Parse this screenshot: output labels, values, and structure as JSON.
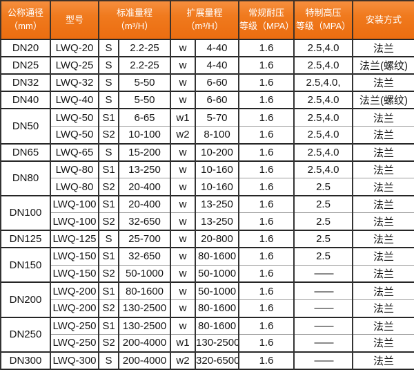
{
  "colors": {
    "header_bg": "#eb6d10",
    "header_text": "#ffffff",
    "grid_dark": "#262626",
    "grid_mid": "#333333",
    "grid_light": "#9a9a9a",
    "body_text": "#141414"
  },
  "chart_data": {
    "type": "table",
    "columns": [
      {
        "label": "公称通径（mm）",
        "lines": [
          "公称通径",
          "（mm）"
        ],
        "colspan": 1
      },
      {
        "label": "型号",
        "lines": [
          "型号"
        ],
        "colspan": 1
      },
      {
        "label": "标准量程（m³/H）",
        "lines": [
          "标准量程",
          "（m³/H）"
        ],
        "colspan": 2
      },
      {
        "label": "扩展量程（m³/H）",
        "lines": [
          "扩展量程",
          "（m³/H）"
        ],
        "colspan": 2
      },
      {
        "label": "常规耐压等级（MPA）",
        "lines": [
          "常规耐压",
          "等级（MPA）"
        ],
        "colspan": 1
      },
      {
        "label": "特制高压等级（MPA）",
        "lines": [
          "特制高压",
          "等级（MPA）"
        ],
        "colspan": 1
      },
      {
        "label": "安装方式",
        "lines": [
          "安装方式"
        ],
        "colspan": 1
      }
    ],
    "rows": [
      {
        "dn": "DN20",
        "dn_rowspan": 1,
        "model": "LWQ-20",
        "std_code": "S",
        "std_range": "2.2-25",
        "ext_code": "w",
        "ext_range": "4-40",
        "normal_mpa": "1.6",
        "special_mpa": "2.5,4.0",
        "install": "法兰"
      },
      {
        "dn": "DN25",
        "dn_rowspan": 1,
        "model": "LWQ-25",
        "std_code": "S",
        "std_range": "2.2-25",
        "ext_code": "w",
        "ext_range": "4-40",
        "normal_mpa": "1.6",
        "special_mpa": "2.5,4.0",
        "install": "法兰(螺纹)"
      },
      {
        "dn": "DN32",
        "dn_rowspan": 1,
        "model": "LWQ-32",
        "std_code": "S",
        "std_range": "5-50",
        "ext_code": "w",
        "ext_range": "6-60",
        "normal_mpa": "1.6",
        "special_mpa": "2.5,4.0,",
        "install": "法兰"
      },
      {
        "dn": "DN40",
        "dn_rowspan": 1,
        "model": "LWQ-40",
        "std_code": "S",
        "std_range": "5-50",
        "ext_code": "w",
        "ext_range": "6-60",
        "normal_mpa": "1.6",
        "special_mpa": "2.5,4.0",
        "install": "法兰(螺纹)"
      },
      {
        "dn": "DN50",
        "dn_rowspan": 2,
        "model": "LWQ-50",
        "std_code": "S1",
        "std_range": "6-65",
        "ext_code": "w1",
        "ext_range": "5-70",
        "normal_mpa": "1.6",
        "special_mpa": "2.5,4.0",
        "install": "法兰"
      },
      {
        "dn": null,
        "dn_rowspan": 0,
        "model": "LWQ-50",
        "std_code": "S2",
        "std_range": "10-100",
        "ext_code": "w2",
        "ext_range": "8-100",
        "normal_mpa": "1.6",
        "special_mpa": "2.5,4.0",
        "install": "法兰"
      },
      {
        "dn": "DN65",
        "dn_rowspan": 1,
        "model": "LWQ-65",
        "std_code": "S",
        "std_range": "15-200",
        "ext_code": "w",
        "ext_range": "10-200",
        "normal_mpa": "1.6",
        "special_mpa": "2.5,4.0",
        "install": "法兰"
      },
      {
        "dn": "DN80",
        "dn_rowspan": 2,
        "model": "LWQ-80",
        "std_code": "S1",
        "std_range": "13-250",
        "ext_code": "w",
        "ext_range": "10-160",
        "normal_mpa": "1.6",
        "special_mpa": "2.5,4.0",
        "install": "法兰"
      },
      {
        "dn": null,
        "dn_rowspan": 0,
        "model": "LWQ-80",
        "std_code": "S2",
        "std_range": "20-400",
        "ext_code": "w",
        "ext_range": "10-160",
        "normal_mpa": "1.6",
        "special_mpa": "2.5",
        "install": "法兰"
      },
      {
        "dn": "DN100",
        "dn_rowspan": 2,
        "model": "LWQ-100",
        "std_code": "S1",
        "std_range": "20-400",
        "ext_code": "w",
        "ext_range": "13-250",
        "normal_mpa": "1.6",
        "special_mpa": "2.5",
        "install": "法兰"
      },
      {
        "dn": null,
        "dn_rowspan": 0,
        "model": "LWQ-100",
        "std_code": "S2",
        "std_range": "32-650",
        "ext_code": "w",
        "ext_range": "13-250",
        "normal_mpa": "1.6",
        "special_mpa": "2.5",
        "install": "法兰"
      },
      {
        "dn": "DN125",
        "dn_rowspan": 1,
        "model": "LWQ-125",
        "std_code": "S",
        "std_range": "25-700",
        "ext_code": "w",
        "ext_range": "20-800",
        "normal_mpa": "1.6",
        "special_mpa": "2.5",
        "install": "法兰"
      },
      {
        "dn": "DN150",
        "dn_rowspan": 2,
        "model": "LWQ-150",
        "std_code": "S1",
        "std_range": "32-650",
        "ext_code": "w",
        "ext_range": "80-1600",
        "normal_mpa": "1.6",
        "special_mpa": "2.5",
        "install": "法兰"
      },
      {
        "dn": null,
        "dn_rowspan": 0,
        "model": "LWQ-150",
        "std_code": "S2",
        "std_range": "50-1000",
        "ext_code": "w",
        "ext_range": "50-1000",
        "normal_mpa": "1.6",
        "special_mpa": "——",
        "install": "法兰"
      },
      {
        "dn": "DN200",
        "dn_rowspan": 2,
        "model": "LWQ-200",
        "std_code": "S1",
        "std_range": "80-1600",
        "ext_code": "w",
        "ext_range": "50-1000",
        "normal_mpa": "1.6",
        "special_mpa": "——",
        "install": "法兰"
      },
      {
        "dn": null,
        "dn_rowspan": 0,
        "model": "LWQ-200",
        "std_code": "S2",
        "std_range": "130-2500",
        "ext_code": "w",
        "ext_range": "80-1600",
        "normal_mpa": "1.6",
        "special_mpa": "——",
        "install": "法兰"
      },
      {
        "dn": "DN250",
        "dn_rowspan": 2,
        "model": "LWQ-250",
        "std_code": "S1",
        "std_range": "130-2500",
        "ext_code": "w",
        "ext_range": "80-1600",
        "normal_mpa": "1.6",
        "special_mpa": "——",
        "install": "法兰"
      },
      {
        "dn": null,
        "dn_rowspan": 0,
        "model": "LWQ-250",
        "std_code": "S2",
        "std_range": "200-4000",
        "ext_code": "w1",
        "ext_range": "130-2500",
        "normal_mpa": "1.6",
        "special_mpa": "——",
        "install": "法兰"
      },
      {
        "dn": "DN300",
        "dn_rowspan": 1,
        "model": "LWQ-300",
        "std_code": "S",
        "std_range": "200-4000",
        "ext_code": "w2",
        "ext_range": "320-6500",
        "normal_mpa": "1.6",
        "special_mpa": "——",
        "install": "法兰"
      }
    ]
  }
}
